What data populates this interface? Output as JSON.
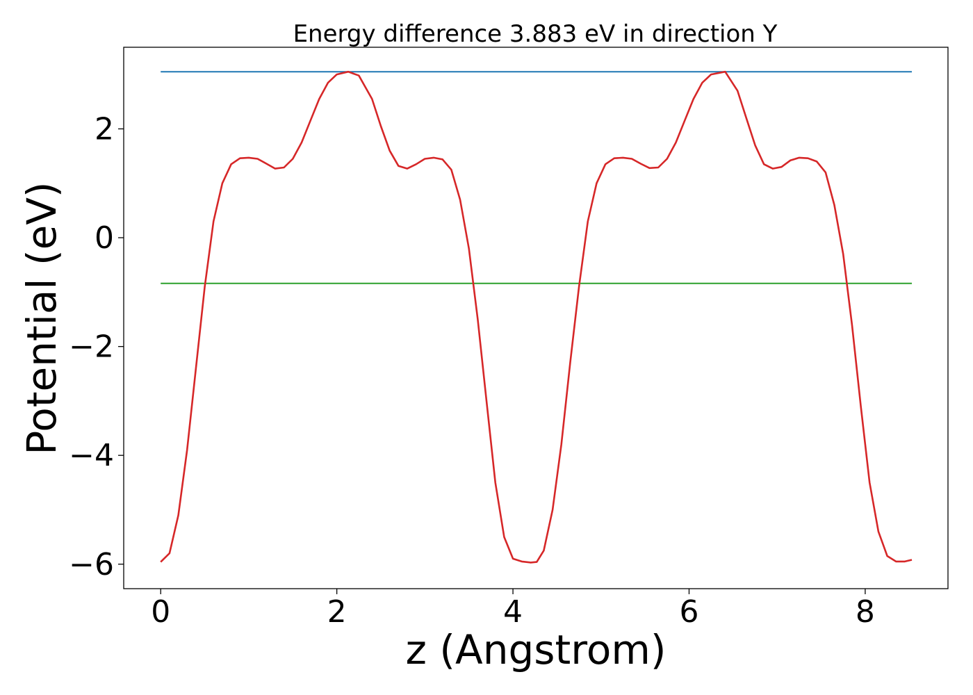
{
  "chart_data": {
    "type": "line",
    "title": "Energy difference 3.883 eV in direction Y",
    "xlabel": "z (Angstrom)",
    "ylabel": "Potential (eV)",
    "xlim": [
      -0.42,
      8.94
    ],
    "ylim": [
      -6.45,
      3.5
    ],
    "xticks": [
      0,
      2,
      4,
      6,
      8
    ],
    "xtick_labels": [
      "0",
      "2",
      "4",
      "6",
      "8"
    ],
    "yticks": [
      -6,
      -4,
      -2,
      0,
      2
    ],
    "ytick_labels": [
      "−6",
      "−4",
      "−2",
      "0",
      "2"
    ],
    "grid": false,
    "legend": "none",
    "series": [
      {
        "color": "#d62728",
        "x": [
          0.0,
          0.1,
          0.2,
          0.3,
          0.4,
          0.5,
          0.6,
          0.7,
          0.8,
          0.9,
          1.0,
          1.1,
          1.2,
          1.3,
          1.4,
          1.5,
          1.6,
          1.7,
          1.8,
          1.9,
          2.0,
          2.13,
          2.25,
          2.4,
          2.5,
          2.6,
          2.7,
          2.8,
          2.9,
          3.0,
          3.1,
          3.2,
          3.3,
          3.4,
          3.5,
          3.6,
          3.7,
          3.8,
          3.9,
          4.0,
          4.1,
          4.2,
          4.27,
          4.35,
          4.45,
          4.55,
          4.65,
          4.75,
          4.85,
          4.95,
          5.05,
          5.15,
          5.25,
          5.35,
          5.45,
          5.55,
          5.65,
          5.75,
          5.85,
          5.95,
          6.05,
          6.15,
          6.25,
          6.41,
          6.55,
          6.65,
          6.75,
          6.85,
          6.95,
          7.05,
          7.15,
          7.25,
          7.35,
          7.45,
          7.55,
          7.65,
          7.75,
          7.85,
          7.95,
          8.05,
          8.15,
          8.25,
          8.35,
          8.45,
          8.53
        ],
        "y": [
          -5.96,
          -5.8,
          -5.1,
          -3.9,
          -2.4,
          -0.9,
          0.3,
          1.0,
          1.35,
          1.46,
          1.47,
          1.45,
          1.36,
          1.27,
          1.29,
          1.45,
          1.75,
          2.15,
          2.55,
          2.85,
          3.0,
          3.05,
          2.98,
          2.55,
          2.05,
          1.6,
          1.32,
          1.27,
          1.35,
          1.45,
          1.47,
          1.44,
          1.25,
          0.7,
          -0.2,
          -1.5,
          -3.0,
          -4.5,
          -5.5,
          -5.9,
          -5.95,
          -5.97,
          -5.96,
          -5.75,
          -5.0,
          -3.8,
          -2.3,
          -0.9,
          0.3,
          1.0,
          1.35,
          1.46,
          1.47,
          1.45,
          1.36,
          1.28,
          1.29,
          1.45,
          1.75,
          2.15,
          2.55,
          2.85,
          3.0,
          3.05,
          2.7,
          2.2,
          1.7,
          1.35,
          1.27,
          1.3,
          1.42,
          1.47,
          1.46,
          1.4,
          1.2,
          0.6,
          -0.3,
          -1.6,
          -3.1,
          -4.5,
          -5.4,
          -5.85,
          -5.95,
          -5.95,
          -5.92
        ]
      },
      {
        "color": "#1f77b4",
        "x": [
          0.0,
          8.53
        ],
        "y": [
          3.05,
          3.05
        ]
      },
      {
        "color": "#2ca02c",
        "x": [
          0.0,
          8.53
        ],
        "y": [
          -0.84,
          -0.84
        ]
      }
    ]
  }
}
